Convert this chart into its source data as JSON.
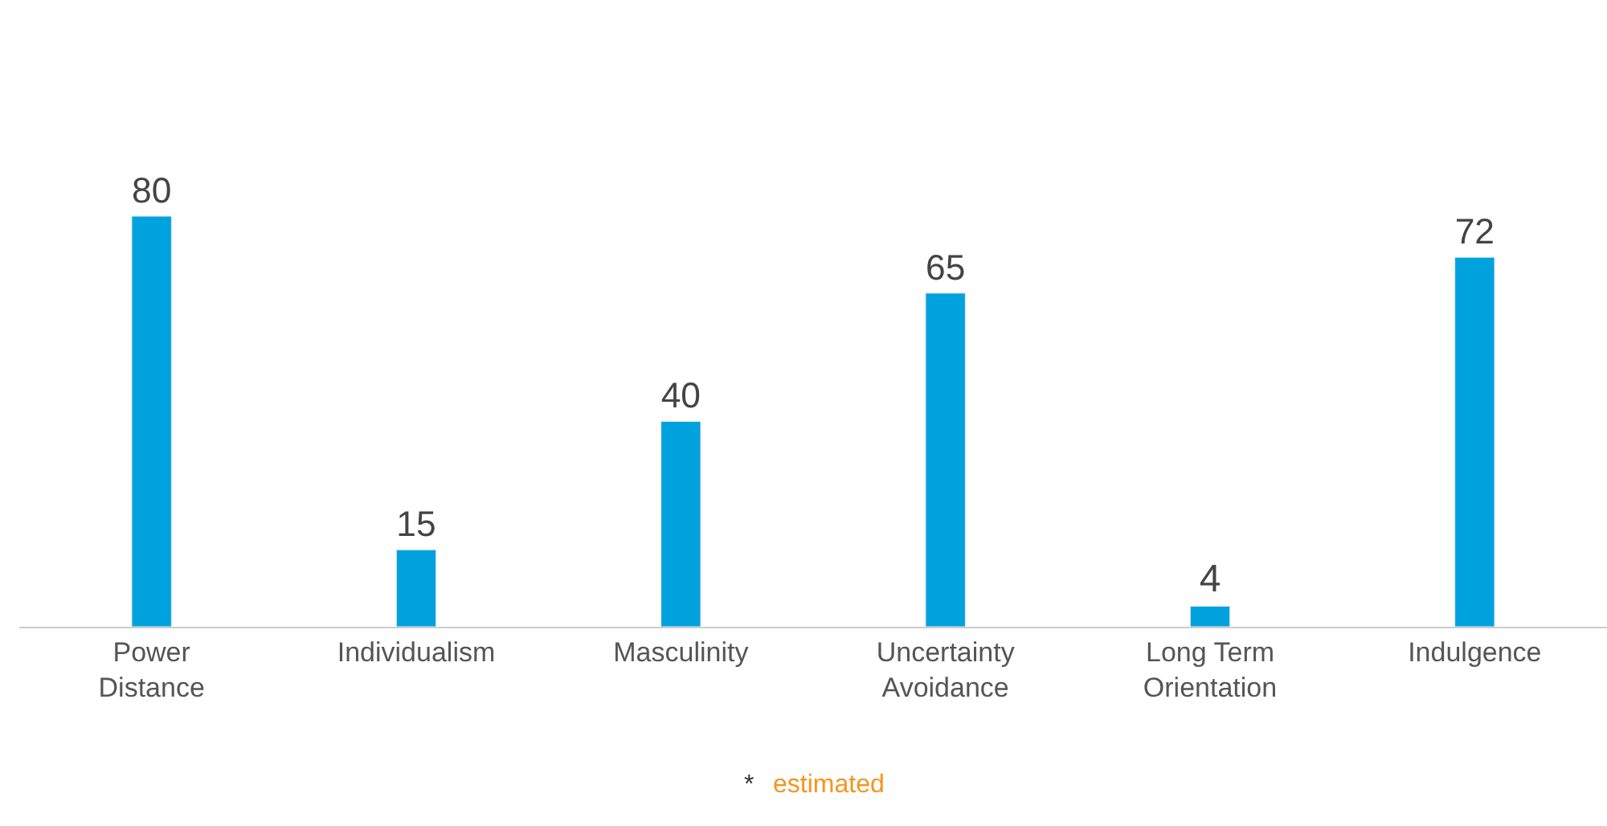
{
  "chart_data": {
    "type": "bar",
    "categories": [
      "Power Distance",
      "Individualism",
      "Masculinity",
      "Uncertainty Avoidance",
      "Long Term Orientation",
      "Indulgence"
    ],
    "values": [
      80,
      15,
      40,
      65,
      4,
      72
    ],
    "color": "#00a2dd",
    "data_labels": true,
    "annotations": [
      "*",
      "estimated"
    ]
  }
}
